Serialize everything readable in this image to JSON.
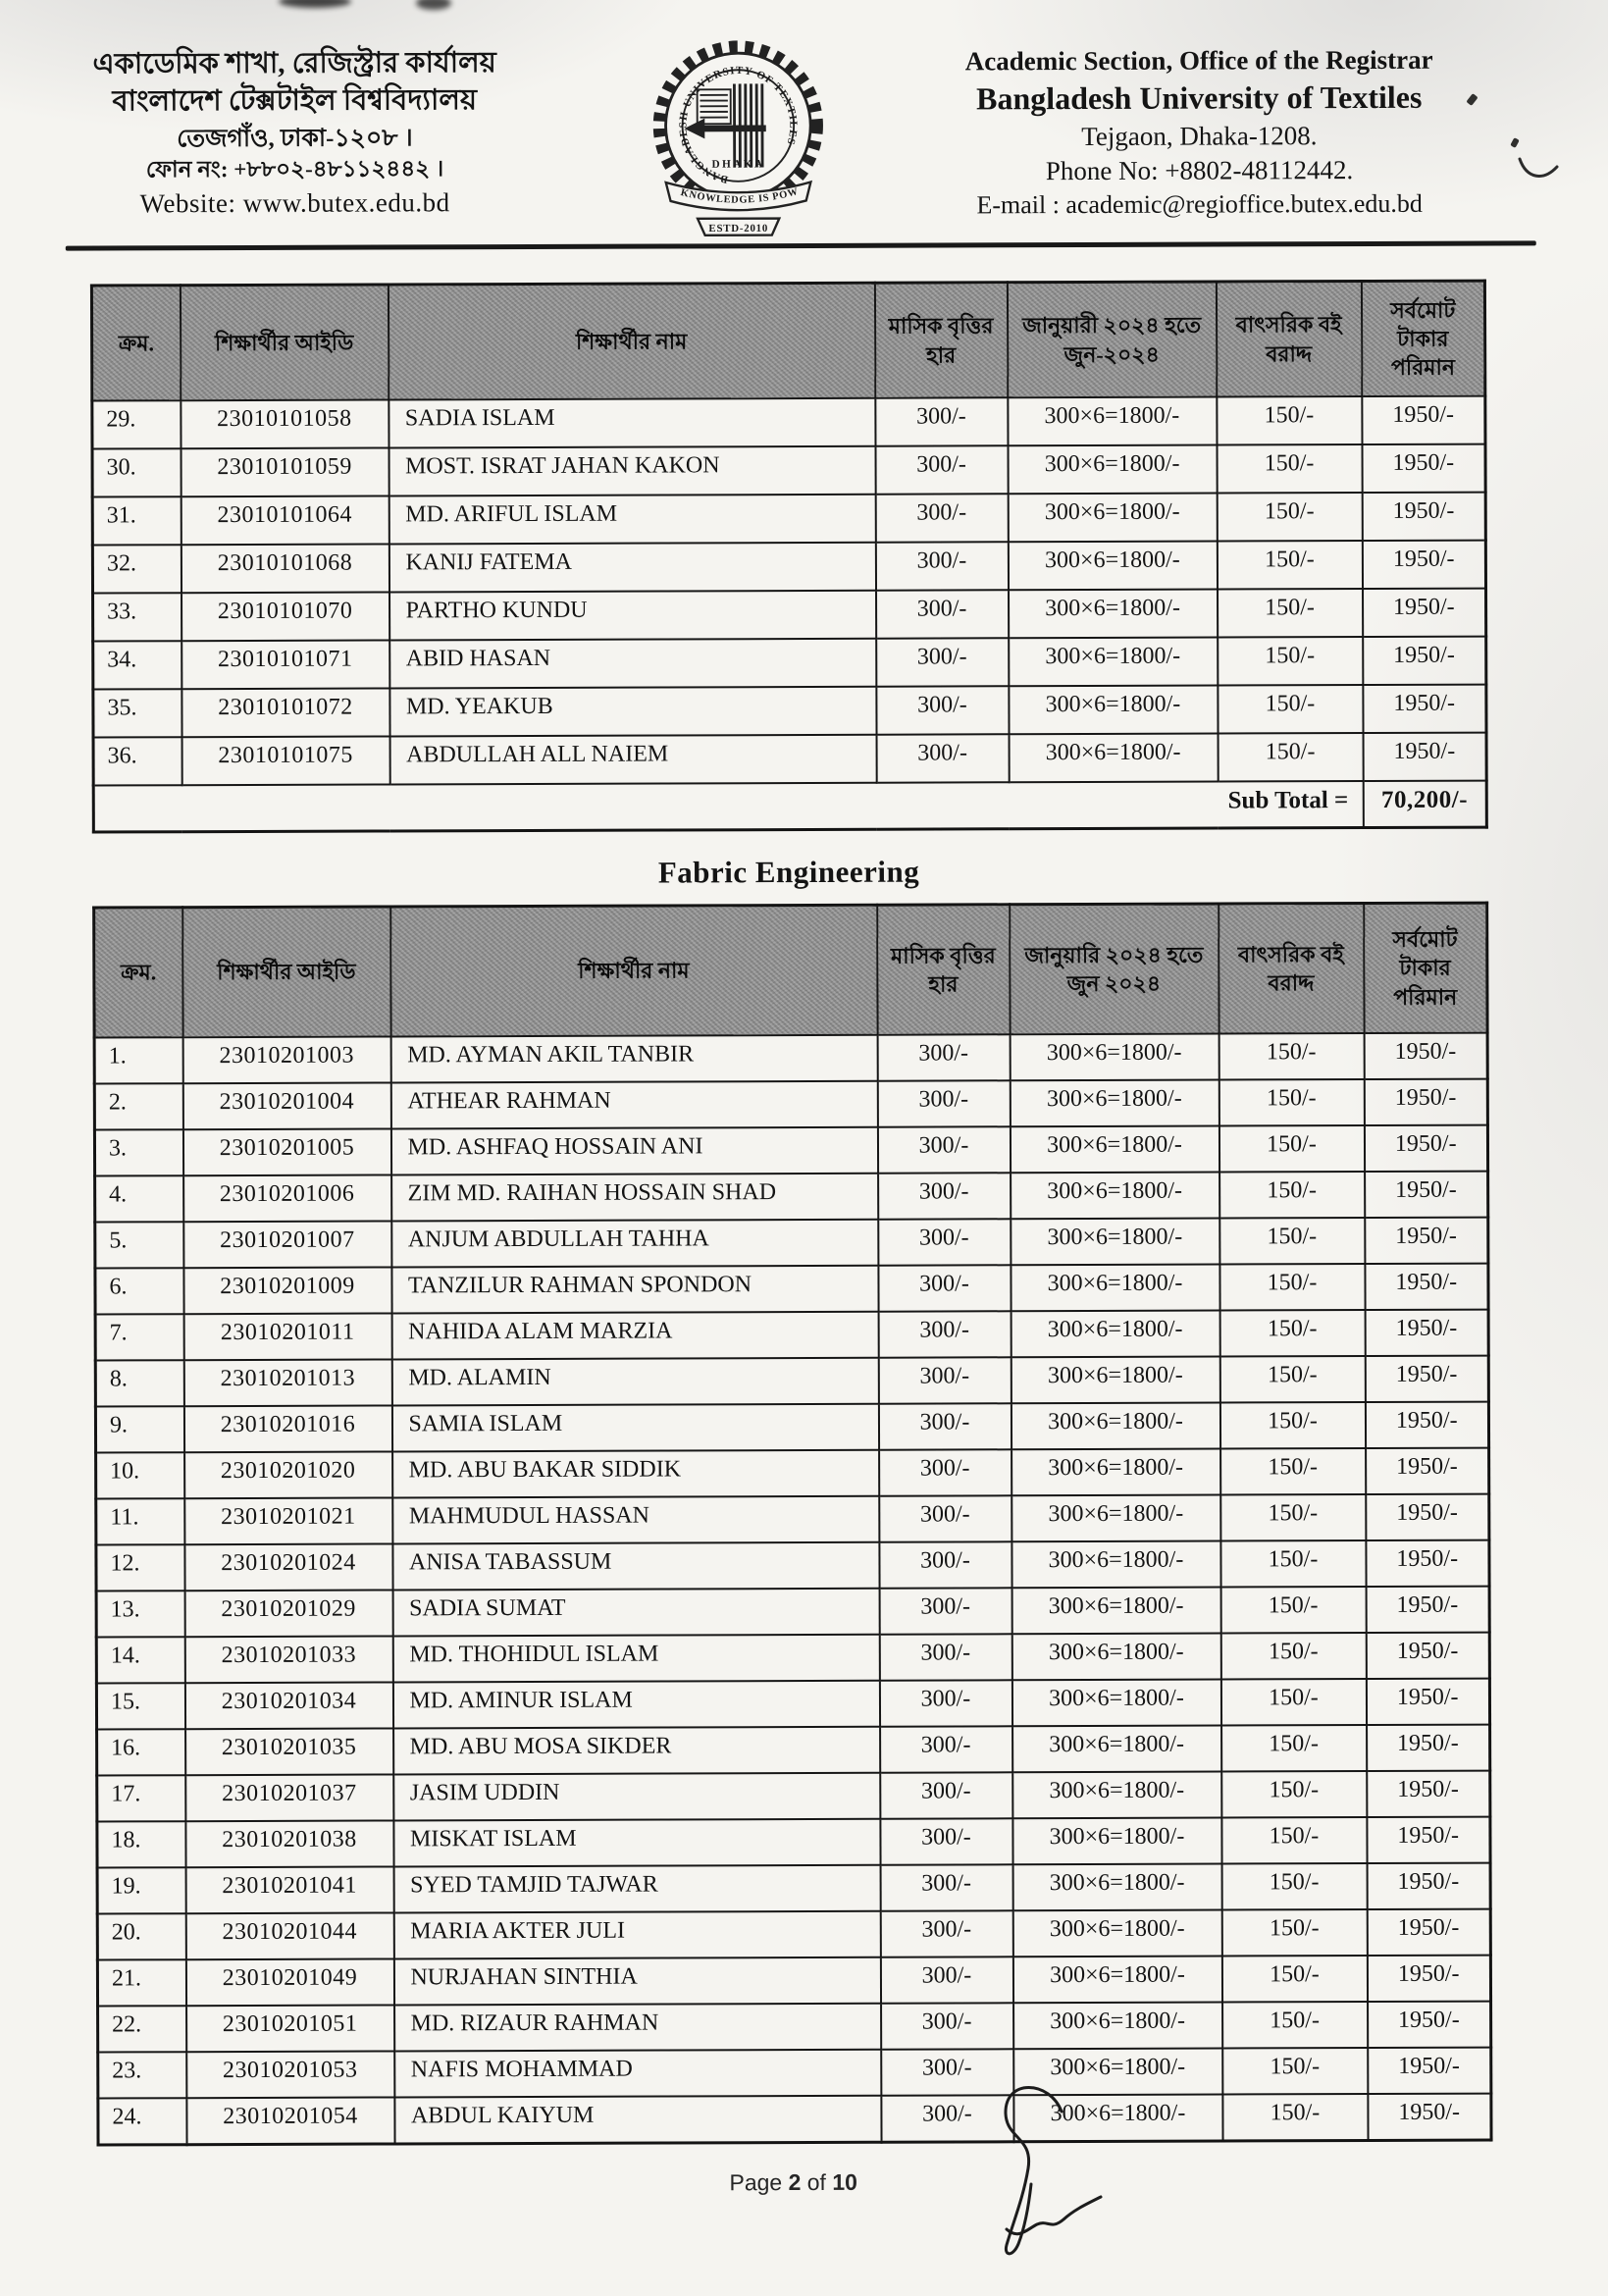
{
  "header": {
    "left": {
      "line1": "একাডেমিক শাখা, রেজিস্ট্রার কার্যালয়",
      "line2": "বাংলাদেশ টেক্সটাইল বিশ্ববিদ্যালয়",
      "line3": "তেজগাঁও, ঢাকা-১২০৮ ।",
      "line4": "ফোন নং: +৮৮০২-৪৮১১২৪৪২ ।",
      "line5": "Website: www.butex.edu.bd"
    },
    "logo": {
      "ring_text": "BANGLADESH UNIVERSITY OF TEXTILES",
      "city": "DHAKA",
      "motto": "KNOWLEDGE IS POWER",
      "estd": "ESTD-2010"
    },
    "right": {
      "line1": "Academic Section, Office of the Registrar",
      "line2": "Bangladesh University of Textiles",
      "line3": "Tejgaon, Dhaka-1208.",
      "line4": "Phone No: +8802-48112442.",
      "line5": "E-mail : academic@regioffice.butex.edu.bd"
    }
  },
  "table1": {
    "columns": [
      "ক্রম.",
      "শিক্ষার্থীর আইডি",
      "শিক্ষার্থীর নাম",
      "মাসিক বৃত্তির হার",
      "জানুয়ারী ২০২৪ হতে জুন-২০২৪",
      "বাৎসরিক বই বরাদ্দ",
      "সর্বমোট টাকার পরিমান"
    ],
    "rows": [
      [
        "29.",
        "23010101058",
        "SADIA ISLAM",
        "300/-",
        "300×6=1800/-",
        "150/-",
        "1950/-"
      ],
      [
        "30.",
        "23010101059",
        "MOST. ISRAT JAHAN KAKON",
        "300/-",
        "300×6=1800/-",
        "150/-",
        "1950/-"
      ],
      [
        "31.",
        "23010101064",
        "MD. ARIFUL ISLAM",
        "300/-",
        "300×6=1800/-",
        "150/-",
        "1950/-"
      ],
      [
        "32.",
        "23010101068",
        "KANIJ FATEMA",
        "300/-",
        "300×6=1800/-",
        "150/-",
        "1950/-"
      ],
      [
        "33.",
        "23010101070",
        "PARTHO KUNDU",
        "300/-",
        "300×6=1800/-",
        "150/-",
        "1950/-"
      ],
      [
        "34.",
        "23010101071",
        "ABID HASAN",
        "300/-",
        "300×6=1800/-",
        "150/-",
        "1950/-"
      ],
      [
        "35.",
        "23010101072",
        "MD. YEAKUB",
        "300/-",
        "300×6=1800/-",
        "150/-",
        "1950/-"
      ],
      [
        "36.",
        "23010101075",
        "ABDULLAH ALL NAIEM",
        "300/-",
        "300×6=1800/-",
        "150/-",
        "1950/-"
      ]
    ],
    "subtotal_label": "Sub Total =",
    "subtotal_value": "70,200/-"
  },
  "section_title": "Fabric Engineering",
  "table2": {
    "columns": [
      "ক্রম.",
      "শিক্ষার্থীর আইডি",
      "শিক্ষার্থীর নাম",
      "মাসিক বৃত্তির হার",
      "জানুয়ারি ২০২৪ হতে জুন ২০২৪",
      "বাৎসরিক বই বরাদ্দ",
      "সর্বমোট টাকার পরিমান"
    ],
    "rows": [
      [
        "1.",
        "23010201003",
        "MD. AYMAN AKIL TANBIR",
        "300/-",
        "300×6=1800/-",
        "150/-",
        "1950/-"
      ],
      [
        "2.",
        "23010201004",
        "ATHEAR RAHMAN",
        "300/-",
        "300×6=1800/-",
        "150/-",
        "1950/-"
      ],
      [
        "3.",
        "23010201005",
        "MD. ASHFAQ HOSSAIN ANI",
        "300/-",
        "300×6=1800/-",
        "150/-",
        "1950/-"
      ],
      [
        "4.",
        "23010201006",
        "ZIM MD. RAIHAN HOSSAIN SHAD",
        "300/-",
        "300×6=1800/-",
        "150/-",
        "1950/-"
      ],
      [
        "5.",
        "23010201007",
        "ANJUM ABDULLAH TAHHA",
        "300/-",
        "300×6=1800/-",
        "150/-",
        "1950/-"
      ],
      [
        "6.",
        "23010201009",
        "TANZILUR RAHMAN SPONDON",
        "300/-",
        "300×6=1800/-",
        "150/-",
        "1950/-"
      ],
      [
        "7.",
        "23010201011",
        "NAHIDA ALAM MARZIA",
        "300/-",
        "300×6=1800/-",
        "150/-",
        "1950/-"
      ],
      [
        "8.",
        "23010201013",
        "MD. ALAMIN",
        "300/-",
        "300×6=1800/-",
        "150/-",
        "1950/-"
      ],
      [
        "9.",
        "23010201016",
        "SAMIA ISLAM",
        "300/-",
        "300×6=1800/-",
        "150/-",
        "1950/-"
      ],
      [
        "10.",
        "23010201020",
        "MD. ABU BAKAR SIDDIK",
        "300/-",
        "300×6=1800/-",
        "150/-",
        "1950/-"
      ],
      [
        "11.",
        "23010201021",
        "MAHMUDUL HASSAN",
        "300/-",
        "300×6=1800/-",
        "150/-",
        "1950/-"
      ],
      [
        "12.",
        "23010201024",
        "ANISA TABASSUM",
        "300/-",
        "300×6=1800/-",
        "150/-",
        "1950/-"
      ],
      [
        "13.",
        "23010201029",
        "SADIA SUMAT",
        "300/-",
        "300×6=1800/-",
        "150/-",
        "1950/-"
      ],
      [
        "14.",
        "23010201033",
        "MD. THOHIDUL ISLAM",
        "300/-",
        "300×6=1800/-",
        "150/-",
        "1950/-"
      ],
      [
        "15.",
        "23010201034",
        "MD. AMINUR ISLAM",
        "300/-",
        "300×6=1800/-",
        "150/-",
        "1950/-"
      ],
      [
        "16.",
        "23010201035",
        "MD. ABU MOSA SIKDER",
        "300/-",
        "300×6=1800/-",
        "150/-",
        "1950/-"
      ],
      [
        "17.",
        "23010201037",
        "JASIM UDDIN",
        "300/-",
        "300×6=1800/-",
        "150/-",
        "1950/-"
      ],
      [
        "18.",
        "23010201038",
        "MISKAT ISLAM",
        "300/-",
        "300×6=1800/-",
        "150/-",
        "1950/-"
      ],
      [
        "19.",
        "23010201041",
        "SYED TAMJID TAJWAR",
        "300/-",
        "300×6=1800/-",
        "150/-",
        "1950/-"
      ],
      [
        "20.",
        "23010201044",
        "MARIA AKTER JULI",
        "300/-",
        "300×6=1800/-",
        "150/-",
        "1950/-"
      ],
      [
        "21.",
        "23010201049",
        "NURJAHAN SINTHIA",
        "300/-",
        "300×6=1800/-",
        "150/-",
        "1950/-"
      ],
      [
        "22.",
        "23010201051",
        "MD. RIZAUR RAHMAN",
        "300/-",
        "300×6=1800/-",
        "150/-",
        "1950/-"
      ],
      [
        "23.",
        "23010201053",
        "NAFIS MOHAMMAD",
        "300/-",
        "300×6=1800/-",
        "150/-",
        "1950/-"
      ],
      [
        "24.",
        "23010201054",
        "ABDUL KAIYUM",
        "300/-",
        "300×6=1800/-",
        "150/-",
        "1950/-"
      ]
    ]
  },
  "footer": {
    "word_page": "Page",
    "page_num": "2",
    "word_of": "of",
    "page_total": "10"
  }
}
